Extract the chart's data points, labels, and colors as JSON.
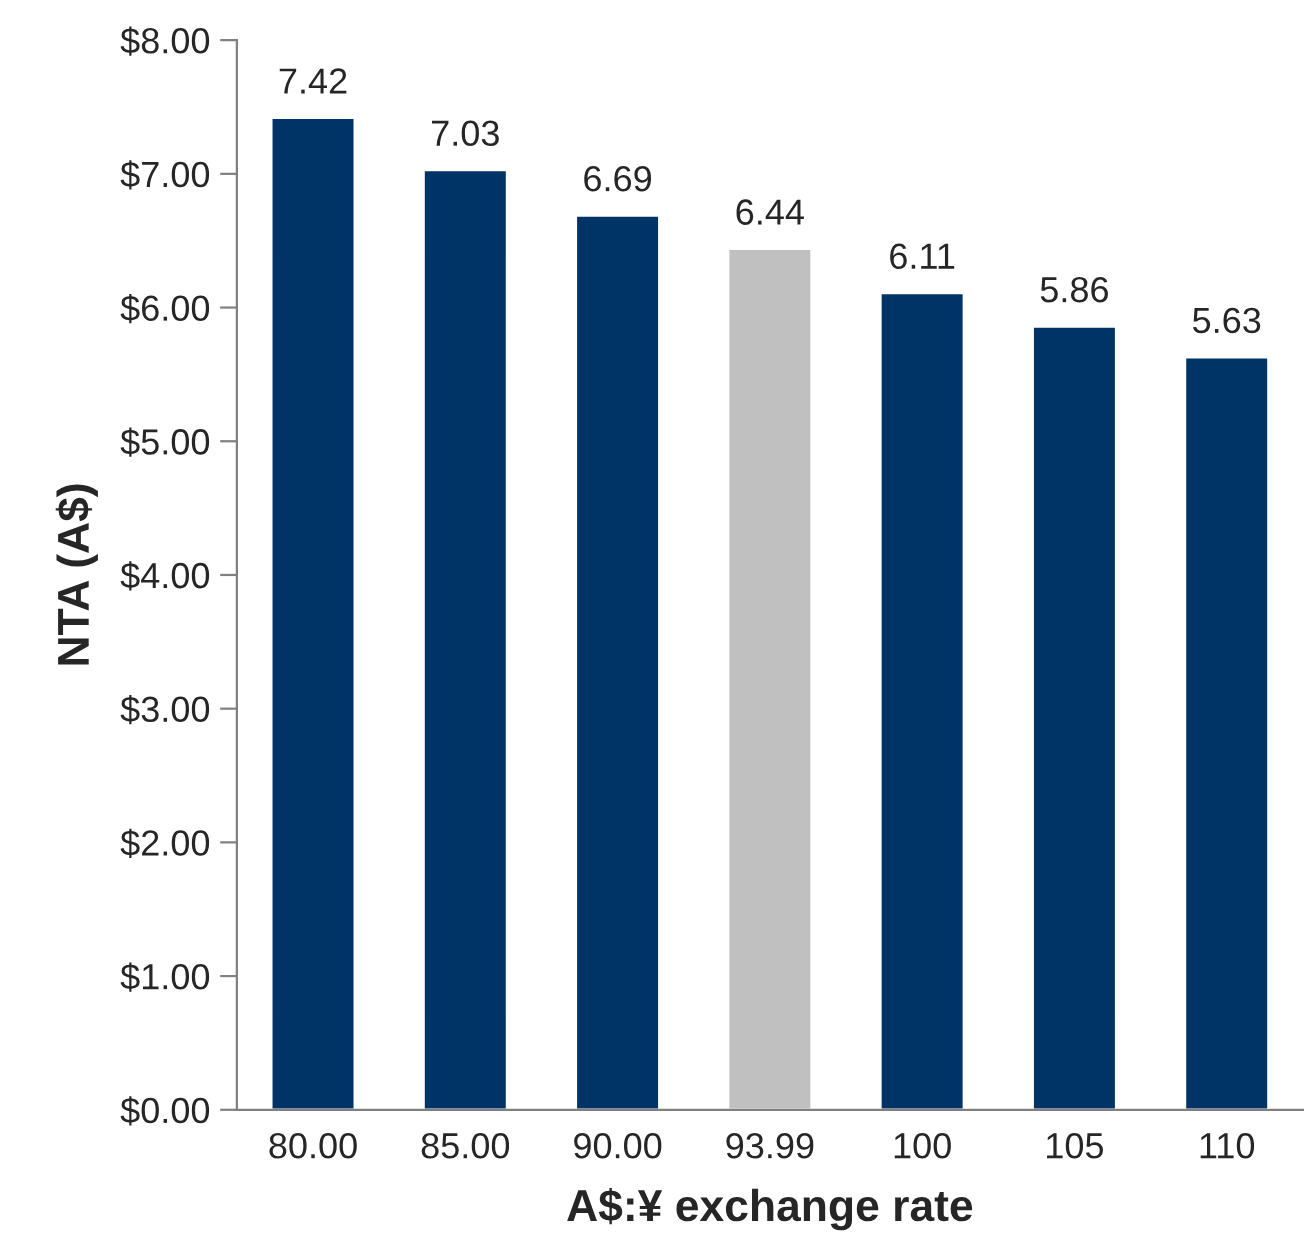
{
  "chart_data": {
    "type": "bar",
    "xlabel": "A$:¥ exchange rate",
    "ylabel": "NTA (A$)",
    "categories": [
      "80.00",
      "85.00",
      "90.00",
      "93.99",
      "100",
      "105",
      "110"
    ],
    "values": [
      7.42,
      7.03,
      6.69,
      6.44,
      6.11,
      5.86,
      5.63
    ],
    "colors": [
      "#003366",
      "#003366",
      "#003366",
      "#c0c0c0",
      "#003366",
      "#003366",
      "#003366"
    ],
    "ylim": [
      0,
      8
    ],
    "yticks": [
      {
        "value": 0,
        "label": "$0.00"
      },
      {
        "value": 1,
        "label": "$1.00"
      },
      {
        "value": 2,
        "label": "$2.00"
      },
      {
        "value": 3,
        "label": "$3.00"
      },
      {
        "value": 4,
        "label": "$4.00"
      },
      {
        "value": 5,
        "label": "$5.00"
      },
      {
        "value": 6,
        "label": "$6.00"
      },
      {
        "value": 7,
        "label": "$7.00"
      },
      {
        "value": 8,
        "label": "$8.00"
      }
    ],
    "data_labels": true
  }
}
